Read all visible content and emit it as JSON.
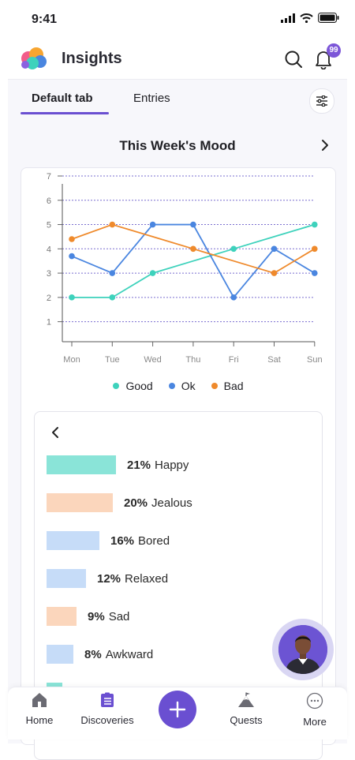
{
  "status": {
    "time": "9:41"
  },
  "header": {
    "title": "Insights",
    "notification_count": "99"
  },
  "tabs": [
    {
      "label": "Default tab",
      "active": true
    },
    {
      "label": "Entries",
      "active": false
    }
  ],
  "section": {
    "title": "This Week's Mood"
  },
  "chart_data": {
    "type": "line",
    "title": "",
    "xlabel": "",
    "ylabel": "",
    "categories": [
      "Mon",
      "Tue",
      "Wed",
      "Thu",
      "Fri",
      "Sat",
      "Sun"
    ],
    "ylim": [
      0.5,
      7
    ],
    "yticks": [
      1,
      2,
      3,
      4,
      5,
      6,
      7
    ],
    "grid": true,
    "legend": "bottom",
    "series": [
      {
        "name": "Good",
        "color": "#3ed2bc",
        "values": [
          2,
          2,
          3,
          3.5,
          4,
          4.5,
          5
        ],
        "markers": [
          true,
          true,
          true,
          false,
          true,
          false,
          true
        ]
      },
      {
        "name": "Ok",
        "color": "#4a86e0",
        "values": [
          3.7,
          3,
          5,
          5,
          2,
          4,
          3
        ],
        "markers": [
          true,
          true,
          true,
          true,
          true,
          true,
          true
        ]
      },
      {
        "name": "Bad",
        "color": "#ef8a2c",
        "values": [
          4.4,
          5,
          4.5,
          4,
          3.5,
          3,
          4
        ],
        "markers": [
          true,
          true,
          false,
          true,
          false,
          true,
          true
        ]
      }
    ]
  },
  "emotions": [
    {
      "percent": "21%",
      "label": "Happy",
      "value": 21,
      "color": "#8ae4d8"
    },
    {
      "percent": "20%",
      "label": "Jealous",
      "value": 20,
      "color": "#fbd6bc"
    },
    {
      "percent": "16%",
      "label": "Bored",
      "value": 16,
      "color": "#c6dcf8"
    },
    {
      "percent": "12%",
      "label": "Relaxed",
      "value": 12,
      "color": "#c6dcf8"
    },
    {
      "percent": "9%",
      "label": "Sad",
      "value": 9,
      "color": "#fbd6bc"
    },
    {
      "percent": "8%",
      "label": "Awkward",
      "value": 8,
      "color": "#c6dcf8"
    }
  ],
  "bottom_nav": {
    "home": "Home",
    "discoveries": "Discoveries",
    "quests": "Quests",
    "more": "More"
  },
  "colors": {
    "accent": "#6a4fd1"
  }
}
